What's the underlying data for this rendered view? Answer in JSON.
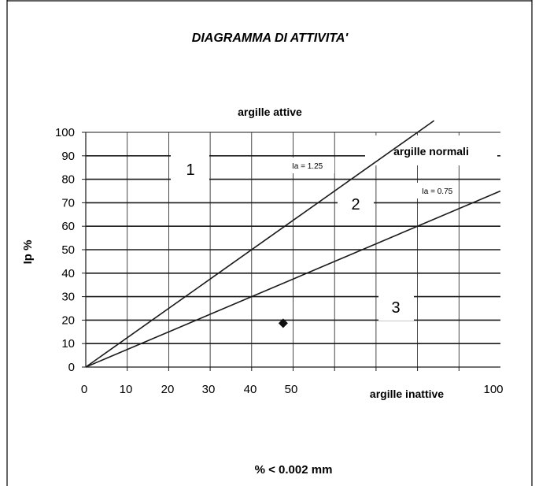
{
  "chart_data": {
    "type": "line",
    "title": "DIAGRAMMA DI ATTIVITA'",
    "xlabel": "% < 0.002 mm",
    "ylabel": "Ip %",
    "xlim": [
      0,
      100
    ],
    "ylim": [
      0,
      100
    ],
    "x_ticks": [
      "0",
      "10",
      "20",
      "30",
      "40",
      "50",
      "100"
    ],
    "y_ticks": [
      "0",
      "10",
      "20",
      "30",
      "40",
      "50",
      "60",
      "70",
      "80",
      "90",
      "100"
    ],
    "grid": true,
    "series": [
      {
        "name": "Ia = 1.25",
        "x": [
          0,
          80
        ],
        "y": [
          0,
          100
        ]
      },
      {
        "name": "Ia = 0.75",
        "x": [
          0,
          100
        ],
        "y": [
          0,
          75
        ]
      }
    ],
    "points": [
      {
        "x": 44,
        "y": 19
      }
    ],
    "zones": [
      {
        "label": "argille attive"
      },
      {
        "label": "argille normali"
      },
      {
        "label": "argille inattive"
      }
    ],
    "region_numbers": [
      "1",
      "2",
      "3"
    ]
  },
  "colors": {
    "line": "#1a1a1a",
    "background": "#ffffff"
  }
}
